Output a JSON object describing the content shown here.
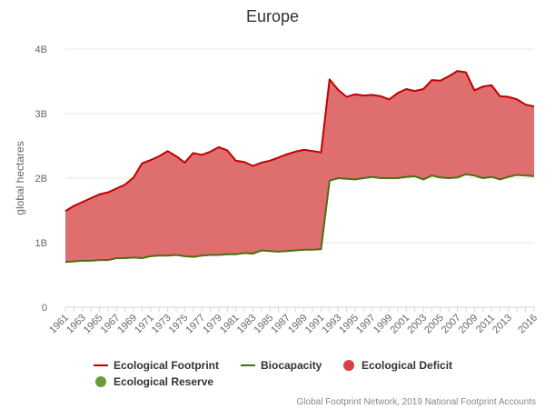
{
  "chart_data": {
    "type": "area",
    "title": "Europe",
    "ylabel": "global hectares",
    "ylim": [
      0,
      4000000000
    ],
    "y_ticks": [
      0,
      1000000000,
      2000000000,
      3000000000,
      4000000000
    ],
    "y_tick_labels": [
      "0",
      "1B",
      "2B",
      "3B",
      "4B"
    ],
    "xlim": [
      1961,
      2016
    ],
    "x_tick_labels": [
      "1961",
      "1963",
      "1965",
      "1967",
      "1969",
      "1971",
      "1973",
      "1975",
      "1977",
      "1979",
      "1981",
      "1983",
      "1985",
      "1987",
      "1989",
      "1991",
      "1993",
      "1995",
      "1997",
      "1999",
      "2001",
      "2003",
      "2005",
      "2007",
      "2009",
      "2011",
      "2013",
      "2016"
    ],
    "x": [
      1961,
      1962,
      1963,
      1964,
      1965,
      1966,
      1967,
      1968,
      1969,
      1970,
      1971,
      1972,
      1973,
      1974,
      1975,
      1976,
      1977,
      1978,
      1979,
      1980,
      1981,
      1982,
      1983,
      1984,
      1985,
      1986,
      1987,
      1988,
      1989,
      1990,
      1991,
      1992,
      1993,
      1994,
      1995,
      1996,
      1997,
      1998,
      1999,
      2000,
      2001,
      2002,
      2003,
      2004,
      2005,
      2006,
      2007,
      2008,
      2009,
      2010,
      2011,
      2012,
      2013,
      2014,
      2015,
      2016
    ],
    "series": [
      {
        "name": "Ecological Footprint",
        "color": "#c00000",
        "values": [
          1.49,
          1.57,
          1.63,
          1.69,
          1.75,
          1.78,
          1.84,
          1.9,
          2.01,
          2.23,
          2.28,
          2.34,
          2.42,
          2.34,
          2.24,
          2.39,
          2.36,
          2.41,
          2.48,
          2.43,
          2.27,
          2.25,
          2.19,
          2.24,
          2.27,
          2.32,
          2.37,
          2.41,
          2.44,
          2.42,
          2.4,
          3.53,
          3.37,
          3.26,
          3.3,
          3.28,
          3.29,
          3.27,
          3.22,
          3.32,
          3.38,
          3.35,
          3.38,
          3.52,
          3.51,
          3.58,
          3.66,
          3.64,
          3.36,
          3.42,
          3.44,
          3.27,
          3.26,
          3.22,
          3.14,
          3.11
        ]
      },
      {
        "name": "Biocapacity",
        "color": "#4a6f12",
        "values": [
          0.7,
          0.71,
          0.72,
          0.72,
          0.73,
          0.73,
          0.76,
          0.76,
          0.77,
          0.76,
          0.79,
          0.8,
          0.8,
          0.81,
          0.79,
          0.78,
          0.8,
          0.81,
          0.81,
          0.82,
          0.82,
          0.84,
          0.83,
          0.88,
          0.87,
          0.86,
          0.87,
          0.88,
          0.89,
          0.89,
          0.9,
          1.96,
          2.0,
          1.99,
          1.98,
          2.0,
          2.02,
          2.0,
          2.0,
          2.0,
          2.02,
          2.03,
          1.98,
          2.04,
          2.01,
          2.0,
          2.01,
          2.06,
          2.04,
          2.0,
          2.02,
          1.98,
          2.02,
          2.05,
          2.04,
          2.03
        ],
        "units": "billions of global hectares"
      }
    ],
    "fill_area": {
      "name": "Ecological Deficit",
      "color": "#dd6666"
    },
    "legend": [
      {
        "name": "Ecological Footprint",
        "symbol": "line",
        "color": "#c00000"
      },
      {
        "name": "Biocapacity",
        "symbol": "line",
        "color": "#4a6f12"
      },
      {
        "name": "Ecological Deficit",
        "symbol": "circle",
        "color": "#d94040"
      },
      {
        "name": "Ecological Reserve",
        "symbol": "circle",
        "color": "#6f9a3a"
      }
    ],
    "legend_position": "bottom",
    "grid": true,
    "credit": "Global Footprint Network, 2019 National Footprint Accounts"
  }
}
